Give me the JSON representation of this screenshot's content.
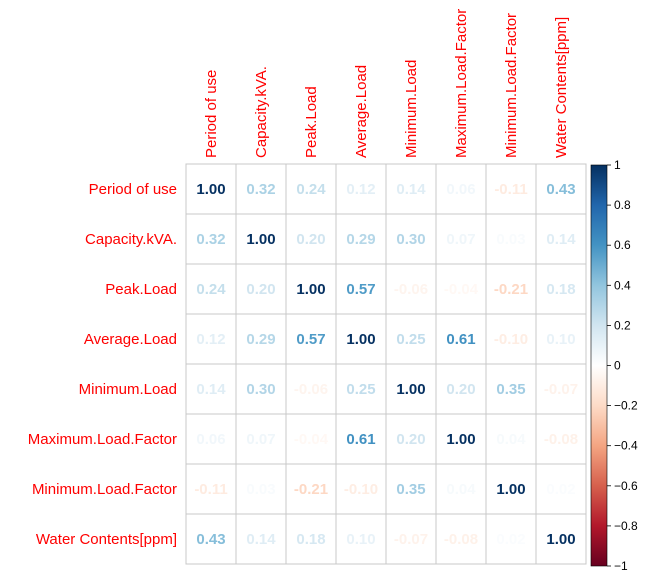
{
  "chart_data": {
    "type": "heatmap",
    "variables": [
      "Period of use",
      "Capacity.kVA.",
      "Peak.Load",
      "Average.Load",
      "Minimum.Load",
      "Maximum.Load.Factor",
      "Minimum.Load.Factor",
      "Water Contents[ppm]"
    ],
    "matrix": [
      [
        1.0,
        0.32,
        0.24,
        0.12,
        0.14,
        0.06,
        -0.11,
        0.43
      ],
      [
        0.32,
        1.0,
        0.2,
        0.29,
        0.3,
        0.07,
        0.03,
        0.14
      ],
      [
        0.24,
        0.2,
        1.0,
        0.57,
        -0.06,
        -0.04,
        -0.21,
        0.18
      ],
      [
        0.12,
        0.29,
        0.57,
        1.0,
        0.25,
        0.61,
        -0.1,
        0.1
      ],
      [
        0.14,
        0.3,
        -0.06,
        0.25,
        1.0,
        0.2,
        0.35,
        -0.07
      ],
      [
        0.06,
        0.07,
        -0.04,
        0.61,
        0.2,
        1.0,
        0.04,
        -0.08
      ],
      [
        -0.11,
        0.03,
        -0.21,
        -0.1,
        0.35,
        0.04,
        1.0,
        0.02
      ],
      [
        0.43,
        0.14,
        0.18,
        0.1,
        -0.07,
        -0.08,
        0.02,
        1.0
      ]
    ],
    "value_format": "2 decimals",
    "colorbar": {
      "ticks": [
        "1",
        "0.8",
        "0.6",
        "0.4",
        "0.2",
        "0",
        "−0.2",
        "−0.4",
        "−0.6",
        "−0.8",
        "−1"
      ],
      "range": [
        -1,
        1
      ],
      "negative_color": "#67001f",
      "mid_color": "#ffffff",
      "positive_color": "#053061"
    },
    "label_color": "#ff0000",
    "grid_color": "#c8c8c8"
  }
}
